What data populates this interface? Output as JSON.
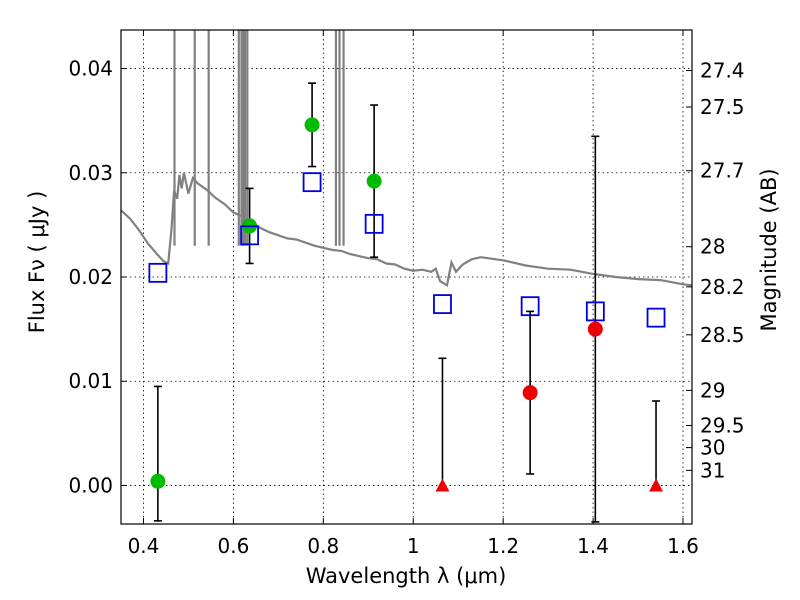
{
  "chart_data": {
    "type": "scatter",
    "title": "",
    "xlabel": "Wavelength  λ (μm)",
    "ylabel": "Flux  Fν  ( μJy )",
    "y2label": "Magnitude (AB)",
    "xlim": [
      0.35,
      1.62
    ],
    "ylim": [
      -0.0037,
      0.0437
    ],
    "grid": true,
    "x_ticks": [
      {
        "value": 0.4,
        "label": "0.4"
      },
      {
        "value": 0.6,
        "label": "0.6"
      },
      {
        "value": 0.8,
        "label": "0.8"
      },
      {
        "value": 1.0,
        "label": "1"
      },
      {
        "value": 1.2,
        "label": "1.2"
      },
      {
        "value": 1.4,
        "label": "1.4"
      },
      {
        "value": 1.6,
        "label": "1.6"
      }
    ],
    "y_ticks": [
      {
        "value": 0.0,
        "label": "0.00"
      },
      {
        "value": 0.01,
        "label": "0.01"
      },
      {
        "value": 0.02,
        "label": "0.02"
      },
      {
        "value": 0.03,
        "label": "0.03"
      },
      {
        "value": 0.04,
        "label": "0.04"
      }
    ],
    "mag_ticks": [
      {
        "value": 27.4,
        "label": "27.4"
      },
      {
        "value": 27.5,
        "label": "27.5"
      },
      {
        "value": 27.7,
        "label": "27.7"
      },
      {
        "value": 28.0,
        "label": "28"
      },
      {
        "value": 28.2,
        "label": "28.2"
      },
      {
        "value": 28.5,
        "label": "28.5"
      },
      {
        "value": 29.0,
        "label": "29"
      },
      {
        "value": 29.5,
        "label": "29.5"
      },
      {
        "value": 30.0,
        "label": "30"
      },
      {
        "value": 31.0,
        "label": "31"
      }
    ],
    "series": [
      {
        "marker": "circle",
        "color": "#00bb00",
        "points": [
          {
            "x": 0.432,
            "y": 0.0004,
            "err_low": 0.0038,
            "err_high": 0.0091
          },
          {
            "x": 0.636,
            "y": 0.0249,
            "err_low": 0.0036,
            "err_high": 0.0036
          },
          {
            "x": 0.775,
            "y": 0.0346,
            "err_low": 0.004,
            "err_high": 0.004
          },
          {
            "x": 0.913,
            "y": 0.0292,
            "err_low": 0.0073,
            "err_high": 0.0073
          }
        ]
      },
      {
        "marker": "circle",
        "color": "#ee0000",
        "points": [
          {
            "x": 1.26,
            "y": 0.0089,
            "err_low": 0.0078,
            "err_high": 0.0078
          },
          {
            "x": 1.405,
            "y": 0.015,
            "err_low": 0.0185,
            "err_high": 0.0185
          }
        ]
      },
      {
        "marker": "triangle",
        "color": "#ee0000",
        "points": [
          {
            "x": 1.065,
            "y": 0.0,
            "err_low": 0.0,
            "err_high": 0.0122
          },
          {
            "x": 1.54,
            "y": 0.0,
            "err_low": 0.0,
            "err_high": 0.0081
          }
        ]
      },
      {
        "marker": "square",
        "color": "#0000dd",
        "points": [
          {
            "x": 0.432,
            "y": 0.0204
          },
          {
            "x": 0.636,
            "y": 0.024
          },
          {
            "x": 0.775,
            "y": 0.0291
          },
          {
            "x": 0.913,
            "y": 0.0251
          },
          {
            "x": 1.065,
            "y": 0.0174
          },
          {
            "x": 1.26,
            "y": 0.0172
          },
          {
            "x": 1.405,
            "y": 0.0167
          },
          {
            "x": 1.54,
            "y": 0.0161
          }
        ]
      }
    ],
    "spectrum": {
      "color": "#808080",
      "points": [
        [
          0.35,
          0.0264
        ],
        [
          0.37,
          0.0256
        ],
        [
          0.39,
          0.0245
        ],
        [
          0.41,
          0.0232
        ],
        [
          0.43,
          0.0222
        ],
        [
          0.445,
          0.0215
        ],
        [
          0.455,
          0.0213
        ],
        [
          0.462,
          0.0245
        ],
        [
          0.468,
          0.0283
        ],
        [
          0.475,
          0.0275
        ],
        [
          0.48,
          0.0298
        ],
        [
          0.485,
          0.0285
        ],
        [
          0.49,
          0.03
        ],
        [
          0.5,
          0.028
        ],
        [
          0.51,
          0.0295
        ],
        [
          0.52,
          0.029
        ],
        [
          0.54,
          0.0284
        ],
        [
          0.56,
          0.0276
        ],
        [
          0.58,
          0.027
        ],
        [
          0.6,
          0.0262
        ],
        [
          0.62,
          0.0258
        ],
        [
          0.64,
          0.0252
        ],
        [
          0.66,
          0.0247
        ],
        [
          0.68,
          0.0243
        ],
        [
          0.7,
          0.024
        ],
        [
          0.72,
          0.0237
        ],
        [
          0.74,
          0.0236
        ],
        [
          0.76,
          0.0233
        ],
        [
          0.78,
          0.023
        ],
        [
          0.8,
          0.0228
        ],
        [
          0.82,
          0.0226
        ],
        [
          0.84,
          0.0225
        ],
        [
          0.86,
          0.0222
        ],
        [
          0.88,
          0.022
        ],
        [
          0.9,
          0.0218
        ],
        [
          0.92,
          0.0217
        ],
        [
          0.94,
          0.0213
        ],
        [
          0.96,
          0.0212
        ],
        [
          0.98,
          0.0208
        ],
        [
          1.0,
          0.0206
        ],
        [
          1.02,
          0.0207
        ],
        [
          1.04,
          0.0205
        ],
        [
          1.05,
          0.0208
        ],
        [
          1.06,
          0.0196
        ],
        [
          1.075,
          0.0192
        ],
        [
          1.085,
          0.0214
        ],
        [
          1.095,
          0.0205
        ],
        [
          1.11,
          0.0212
        ],
        [
          1.13,
          0.0217
        ],
        [
          1.15,
          0.0219
        ],
        [
          1.2,
          0.0216
        ],
        [
          1.25,
          0.0211
        ],
        [
          1.3,
          0.0208
        ],
        [
          1.35,
          0.0207
        ],
        [
          1.4,
          0.0203
        ],
        [
          1.45,
          0.02
        ],
        [
          1.5,
          0.0198
        ],
        [
          1.55,
          0.0197
        ],
        [
          1.6,
          0.0193
        ],
        [
          1.62,
          0.0192
        ]
      ]
    },
    "spikes": [
      0.469,
      0.514,
      0.545,
      0.612,
      0.618,
      0.622,
      0.626,
      0.631,
      0.828,
      0.836,
      0.845
    ]
  }
}
